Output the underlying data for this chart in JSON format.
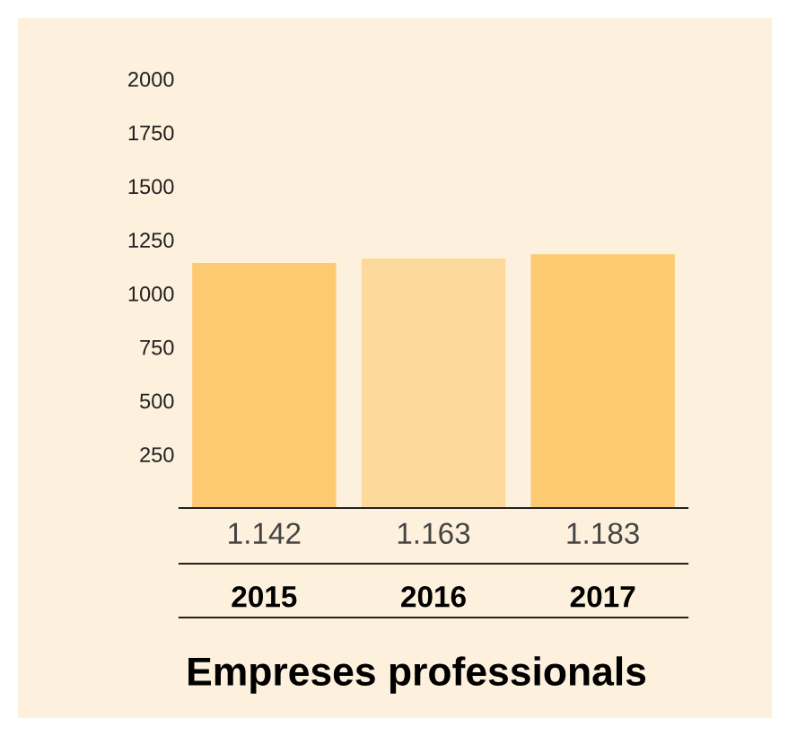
{
  "chart_data": {
    "type": "bar",
    "title": "Empreses professionals",
    "categories": [
      "2015",
      "2016",
      "2017"
    ],
    "values": [
      1142,
      1163,
      1183
    ],
    "colors": [
      "#fdca72",
      "#fdda9c",
      "#fdca72"
    ],
    "value_labels": [
      "1.142",
      "1.163",
      "1.183"
    ],
    "ylim": [
      0,
      2000
    ],
    "yticks": [
      250,
      500,
      750,
      1000,
      1250,
      1500,
      1750,
      2000
    ]
  }
}
